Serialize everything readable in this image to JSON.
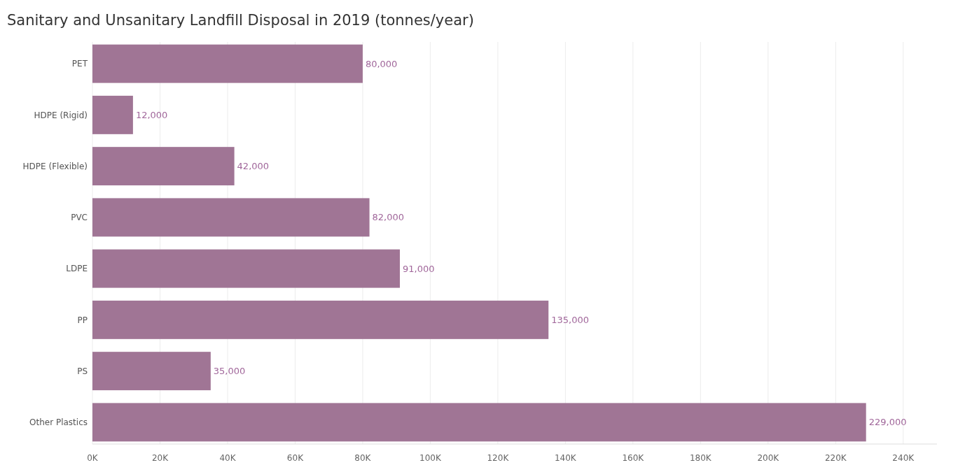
{
  "chart_data": {
    "type": "bar",
    "orientation": "horizontal",
    "title": "Sanitary and Unsanitary Landfill Disposal in 2019 (tonnes/year)",
    "categories": [
      "PET",
      "HDPE (Rigid)",
      "HDPE (Flexible)",
      "PVC",
      "LDPE",
      "PP",
      "PS",
      "Other Plastics"
    ],
    "values": [
      80000,
      12000,
      42000,
      82000,
      91000,
      135000,
      35000,
      229000
    ],
    "value_labels": [
      "80,000",
      "12,000",
      "42,000",
      "82,000",
      "91,000",
      "135,000",
      "35,000",
      "229,000"
    ],
    "color": "#a07595",
    "grid": "x",
    "xlim": [
      0,
      250000
    ],
    "xticks": [
      {
        "value": 0,
        "label": "0K"
      },
      {
        "value": 20000,
        "label": "20K"
      },
      {
        "value": 40000,
        "label": "40K"
      },
      {
        "value": 60000,
        "label": "60K"
      },
      {
        "value": 80000,
        "label": "80K"
      },
      {
        "value": 100000,
        "label": "100K"
      },
      {
        "value": 120000,
        "label": "120K"
      },
      {
        "value": 140000,
        "label": "140K"
      },
      {
        "value": 160000,
        "label": "160K"
      },
      {
        "value": 180000,
        "label": "180K"
      },
      {
        "value": 200000,
        "label": "200K"
      },
      {
        "value": 220000,
        "label": "220K"
      },
      {
        "value": 240000,
        "label": "240K"
      }
    ]
  }
}
